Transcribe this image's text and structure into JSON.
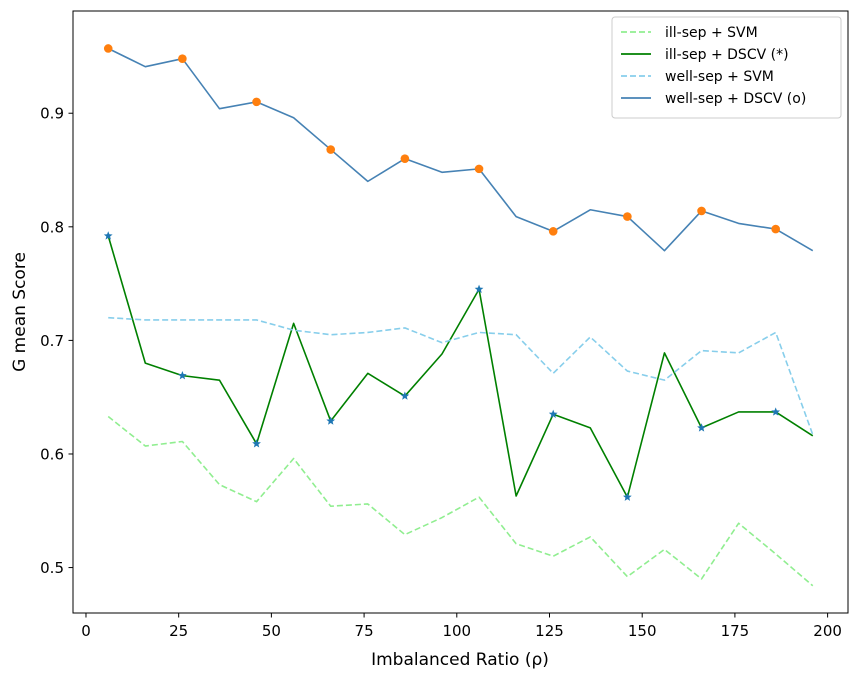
{
  "chart_data": {
    "type": "line",
    "title": "",
    "xlabel": "Imbalanced Ratio (ρ)",
    "ylabel": "G mean Score",
    "xlim": [
      -3.5,
      205.5
    ],
    "ylim": [
      0.46,
      0.99
    ],
    "xticks": [
      0,
      25,
      50,
      75,
      100,
      125,
      150,
      175,
      200
    ],
    "yticks": [
      0.5,
      0.6,
      0.7,
      0.8,
      0.9
    ],
    "grid": false,
    "legend_position": "top-right",
    "x": [
      6,
      16,
      26,
      36,
      46,
      56,
      66,
      76,
      86,
      96,
      106,
      116,
      126,
      136,
      146,
      156,
      166,
      176,
      186,
      196
    ],
    "series": [
      {
        "name": "ill-sep + SVM",
        "color": "#90ee90",
        "style": "dashed",
        "values": [
          0.633,
          0.607,
          0.611,
          0.573,
          0.558,
          0.596,
          0.554,
          0.556,
          0.529,
          0.544,
          0.562,
          0.521,
          0.51,
          0.527,
          0.492,
          0.516,
          0.49,
          0.539,
          0.512,
          0.484
        ]
      },
      {
        "name": "ill-sep + DSCV (*)",
        "color": "#008000",
        "style": "solid",
        "values": [
          0.792,
          0.68,
          0.669,
          0.665,
          0.609,
          0.715,
          0.629,
          0.671,
          0.651,
          0.688,
          0.745,
          0.563,
          0.635,
          0.623,
          0.562,
          0.689,
          0.623,
          0.637,
          0.637,
          0.616
        ],
        "marker": "star",
        "marker_color": "#1f77b4",
        "marker_every": 2
      },
      {
        "name": "well-sep + SVM",
        "color": "#87ceeb",
        "style": "dashed",
        "values": [
          0.72,
          0.718,
          0.718,
          0.718,
          0.718,
          0.709,
          0.705,
          0.707,
          0.711,
          0.698,
          0.707,
          0.705,
          0.671,
          0.703,
          0.673,
          0.665,
          0.691,
          0.689,
          0.707,
          0.617
        ]
      },
      {
        "name": "well-sep + DSCV (o)",
        "color": "#4682b4",
        "style": "solid",
        "values": [
          0.957,
          0.941,
          0.948,
          0.904,
          0.91,
          0.896,
          0.868,
          0.84,
          0.86,
          0.848,
          0.851,
          0.809,
          0.796,
          0.815,
          0.809,
          0.779,
          0.814,
          0.803,
          0.798,
          0.779
        ],
        "marker": "circle",
        "marker_color": "#ff7f0e",
        "marker_every": 2
      }
    ]
  }
}
